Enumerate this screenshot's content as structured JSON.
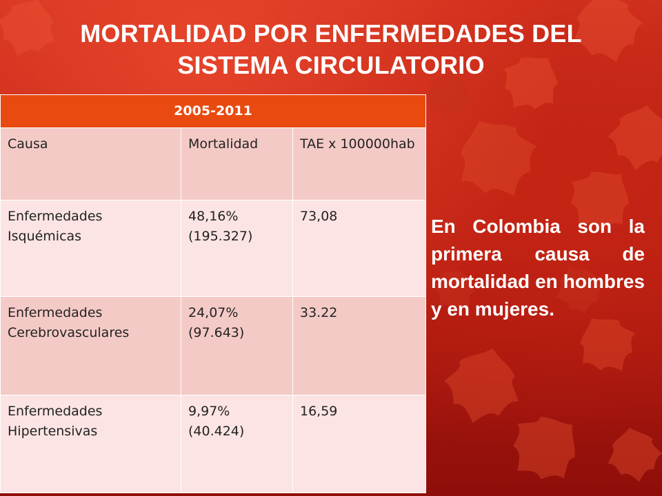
{
  "slide": {
    "title_line1": "MORTALIDAD POR ENFERMEDADES DEL",
    "title_line2": "SISTEMA CIRCULATORIO",
    "background_color": "#b41a10",
    "accent_color": "#e84a10"
  },
  "table": {
    "period": "2005-2011",
    "columns": [
      "Causa",
      "Mortalidad",
      "TAE x 100000hab"
    ],
    "rows": [
      [
        "Enfermedades Isquémicas",
        "48,16% (195.327)",
        "73,08"
      ],
      [
        "Enfermedades Cerebrovasculares",
        "24,07% (97.643)",
        "33.22"
      ],
      [
        "Enfermedades Hipertensivas",
        "9,97% (40.424)",
        "16,59"
      ]
    ]
  },
  "side_note": "En Colombia son la primera causa de mortalidad en hombres y en mujeres."
}
